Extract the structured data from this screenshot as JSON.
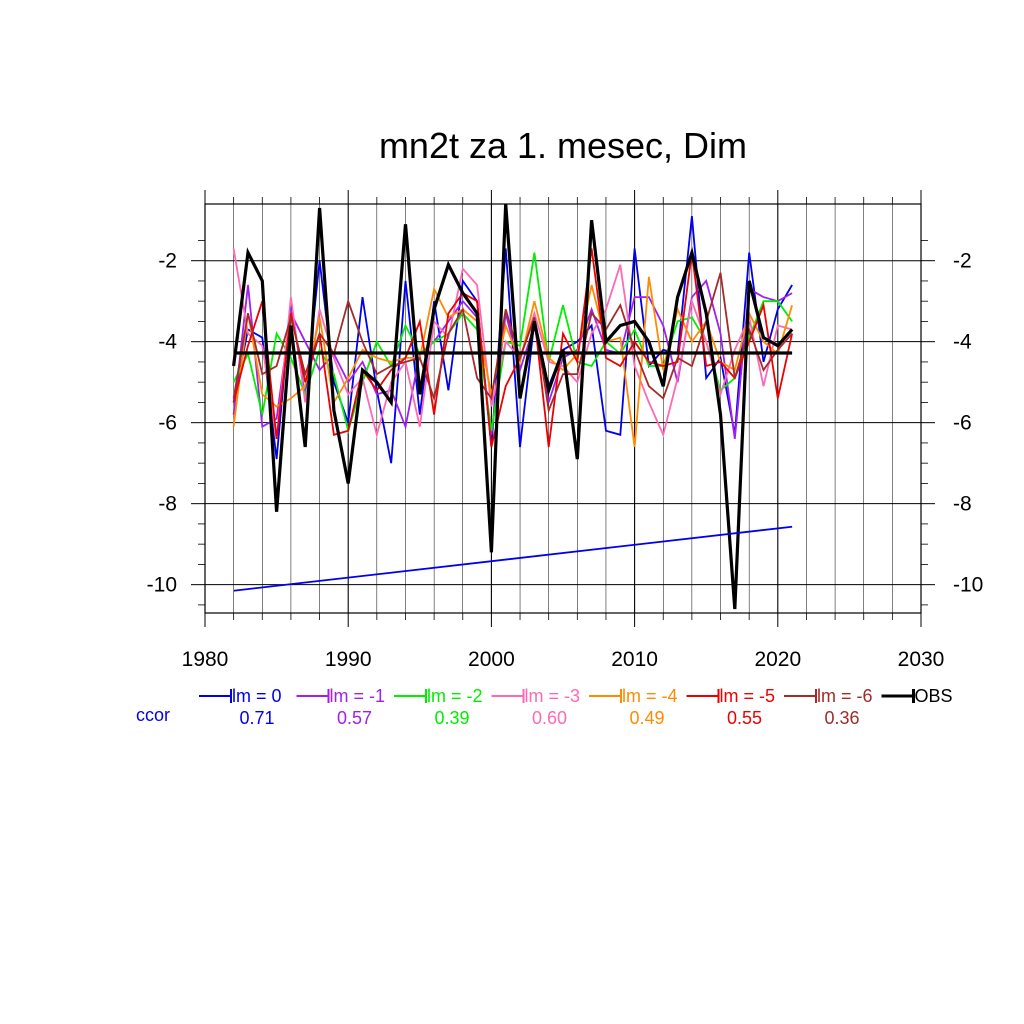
{
  "chart_data": {
    "type": "line",
    "title": "mn2t za 1. mesec, Dim",
    "xlabel": "",
    "ylabel": "",
    "xlim": [
      1980,
      2030
    ],
    "ylim": [
      -10.7,
      -0.6
    ],
    "xticks": [
      1980,
      1990,
      2000,
      2010,
      2020,
      2030
    ],
    "yticks": [
      -2,
      -4,
      -6,
      -8,
      -10
    ],
    "grid": true,
    "x": [
      1982,
      1983,
      1984,
      1985,
      1986,
      1987,
      1988,
      1989,
      1990,
      1991,
      1992,
      1993,
      1994,
      1995,
      1996,
      1997,
      1998,
      1999,
      2000,
      2001,
      2002,
      2003,
      2004,
      2005,
      2006,
      2007,
      2008,
      2009,
      2010,
      2011,
      2012,
      2013,
      2014,
      2015,
      2016,
      2017,
      2018,
      2019,
      2020,
      2021
    ],
    "series": [
      {
        "name": "lm = 0",
        "color": "#0000ee",
        "ccor": "0.71",
        "values": [
          -5.5,
          -3.7,
          -3.9,
          -6.9,
          -3.0,
          -5.4,
          -2.0,
          -5.0,
          -6.0,
          -2.9,
          -5.2,
          -7.0,
          -2.5,
          -5.8,
          -3.0,
          -5.2,
          -2.5,
          -3.0,
          -6.6,
          -1.7,
          -6.6,
          -3.5,
          -5.1,
          -4.2,
          -4.0,
          -3.6,
          -6.2,
          -6.3,
          -1.7,
          -4.6,
          -4.2,
          -4.3,
          -0.9,
          -4.9,
          -4.4,
          -6.3,
          -1.8,
          -4.5,
          -3.2,
          -2.6
        ]
      },
      {
        "name": "lm = -1",
        "color": "#a020f0",
        "ccor": "0.57",
        "values": [
          -5.8,
          -2.6,
          -6.1,
          -5.9,
          -3.3,
          -4.0,
          -4.7,
          -4.3,
          -5.0,
          -4.5,
          -5.3,
          -5.2,
          -6.1,
          -4.3,
          -4.0,
          -3.5,
          -3.0,
          -3.4,
          -6.3,
          -3.3,
          -4.7,
          -3.6,
          -5.5,
          -4.4,
          -4.2,
          -3.2,
          -4.2,
          -4.3,
          -2.9,
          -2.9,
          -3.6,
          -5.0,
          -2.9,
          -2.5,
          -3.8,
          -6.4,
          -2.7,
          -2.9,
          -3.0,
          -2.8
        ]
      },
      {
        "name": "lm = -2",
        "color": "#00ee00",
        "ccor": "0.39",
        "values": [
          -5.0,
          -4.3,
          -5.8,
          -3.8,
          -4.4,
          -5.3,
          -4.2,
          -4.8,
          -6.2,
          -5.0,
          -4.0,
          -4.6,
          -3.6,
          -4.3,
          -4.0,
          -3.8,
          -3.3,
          -3.7,
          -6.2,
          -4.0,
          -4.1,
          -1.8,
          -4.5,
          -3.1,
          -4.5,
          -4.6,
          -4.0,
          -4.3,
          -3.7,
          -4.6,
          -4.6,
          -3.5,
          -3.4,
          -4.0,
          -5.2,
          -4.9,
          -3.9,
          -3.0,
          -3.0,
          -3.5
        ]
      },
      {
        "name": "lm = -3",
        "color": "#ff69b4",
        "ccor": "0.60",
        "values": [
          -1.7,
          -3.8,
          -4.1,
          -6.4,
          -2.9,
          -5.5,
          -3.2,
          -4.4,
          -5.3,
          -4.9,
          -6.3,
          -5.0,
          -4.5,
          -6.1,
          -3.5,
          -3.9,
          -2.2,
          -2.6,
          -5.6,
          -4.0,
          -4.4,
          -3.3,
          -4.5,
          -4.6,
          -5.0,
          -3.8,
          -3.2,
          -2.1,
          -4.6,
          -5.5,
          -6.3,
          -4.9,
          -3.0,
          -4.0,
          -5.3,
          -4.2,
          -3.4,
          -5.1,
          -3.6,
          -3.7
        ]
      },
      {
        "name": "lm = -4",
        "color": "#ff8c00",
        "ccor": "0.49",
        "values": [
          -6.1,
          -3.3,
          -5.3,
          -5.6,
          -5.4,
          -5.1,
          -3.4,
          -5.5,
          -4.9,
          -4.2,
          -4.4,
          -4.5,
          -4.4,
          -4.4,
          -2.7,
          -3.4,
          -3.2,
          -3.5,
          -5.3,
          -3.6,
          -4.5,
          -3.0,
          -4.4,
          -4.7,
          -4.3,
          -2.6,
          -4.0,
          -3.9,
          -6.6,
          -2.4,
          -4.7,
          -3.2,
          -4.0,
          -3.5,
          -4.5,
          -4.7,
          -3.3,
          -4.0,
          -4.3,
          -3.1
        ]
      },
      {
        "name": "lm = -5",
        "color": "#ee0000",
        "ccor": "0.55",
        "values": [
          -5.5,
          -4.1,
          -3.0,
          -6.4,
          -3.3,
          -5.0,
          -3.8,
          -6.3,
          -6.2,
          -4.7,
          -5.2,
          -4.7,
          -4.4,
          -3.5,
          -5.8,
          -3.3,
          -2.8,
          -3.0,
          -6.6,
          -5.1,
          -4.4,
          -3.4,
          -6.6,
          -3.8,
          -4.5,
          -1.7,
          -4.4,
          -4.6,
          -4.0,
          -4.5,
          -4.6,
          -4.5,
          -1.8,
          -4.6,
          -4.5,
          -4.9,
          -4.0,
          -3.1,
          -5.4,
          -3.8
        ]
      },
      {
        "name": "lm = -6",
        "color": "#a52a2a",
        "ccor": "0.36",
        "values": [
          -5.4,
          -3.3,
          -4.8,
          -4.6,
          -3.4,
          -4.8,
          -3.8,
          -4.3,
          -3.0,
          -4.0,
          -4.8,
          -4.6,
          -4.5,
          -4.4,
          -5.4,
          -3.8,
          -3.2,
          -4.9,
          -5.4,
          -3.2,
          -4.4,
          -3.4,
          -5.7,
          -4.8,
          -4.8,
          -3.3,
          -3.7,
          -3.1,
          -4.2,
          -5.1,
          -5.4,
          -4.4,
          -4.6,
          -3.5,
          -2.3,
          -4.9,
          -3.7,
          -4.7,
          -4.2,
          -3.8
        ]
      },
      {
        "name": "OBS",
        "color": "#000000",
        "ccor": "",
        "values": [
          -4.6,
          -1.8,
          -2.5,
          -8.2,
          -3.6,
          -6.6,
          -0.7,
          -5.7,
          -7.5,
          -4.7,
          -5.0,
          -5.5,
          -1.1,
          -5.3,
          -3.2,
          -2.1,
          -2.8,
          -3.3,
          -9.2,
          -0.6,
          -5.4,
          -3.5,
          -5.2,
          -4.2,
          -6.9,
          -1.0,
          -4.0,
          -3.6,
          -3.5,
          -4.0,
          -5.1,
          -2.9,
          -1.8,
          -3.3,
          -5.8,
          -10.6,
          -2.5,
          -3.9,
          -4.1,
          -3.7
        ]
      }
    ],
    "reference_lines": [
      {
        "color": "#000000",
        "x": [
          1982,
          2021
        ],
        "y": [
          -4.28,
          -4.28
        ]
      },
      {
        "color": "#0000ee",
        "x": [
          1982,
          2021
        ],
        "y": [
          -10.15,
          -8.57
        ]
      }
    ],
    "legend_label": "ccor",
    "legend_placement": "bottom"
  }
}
